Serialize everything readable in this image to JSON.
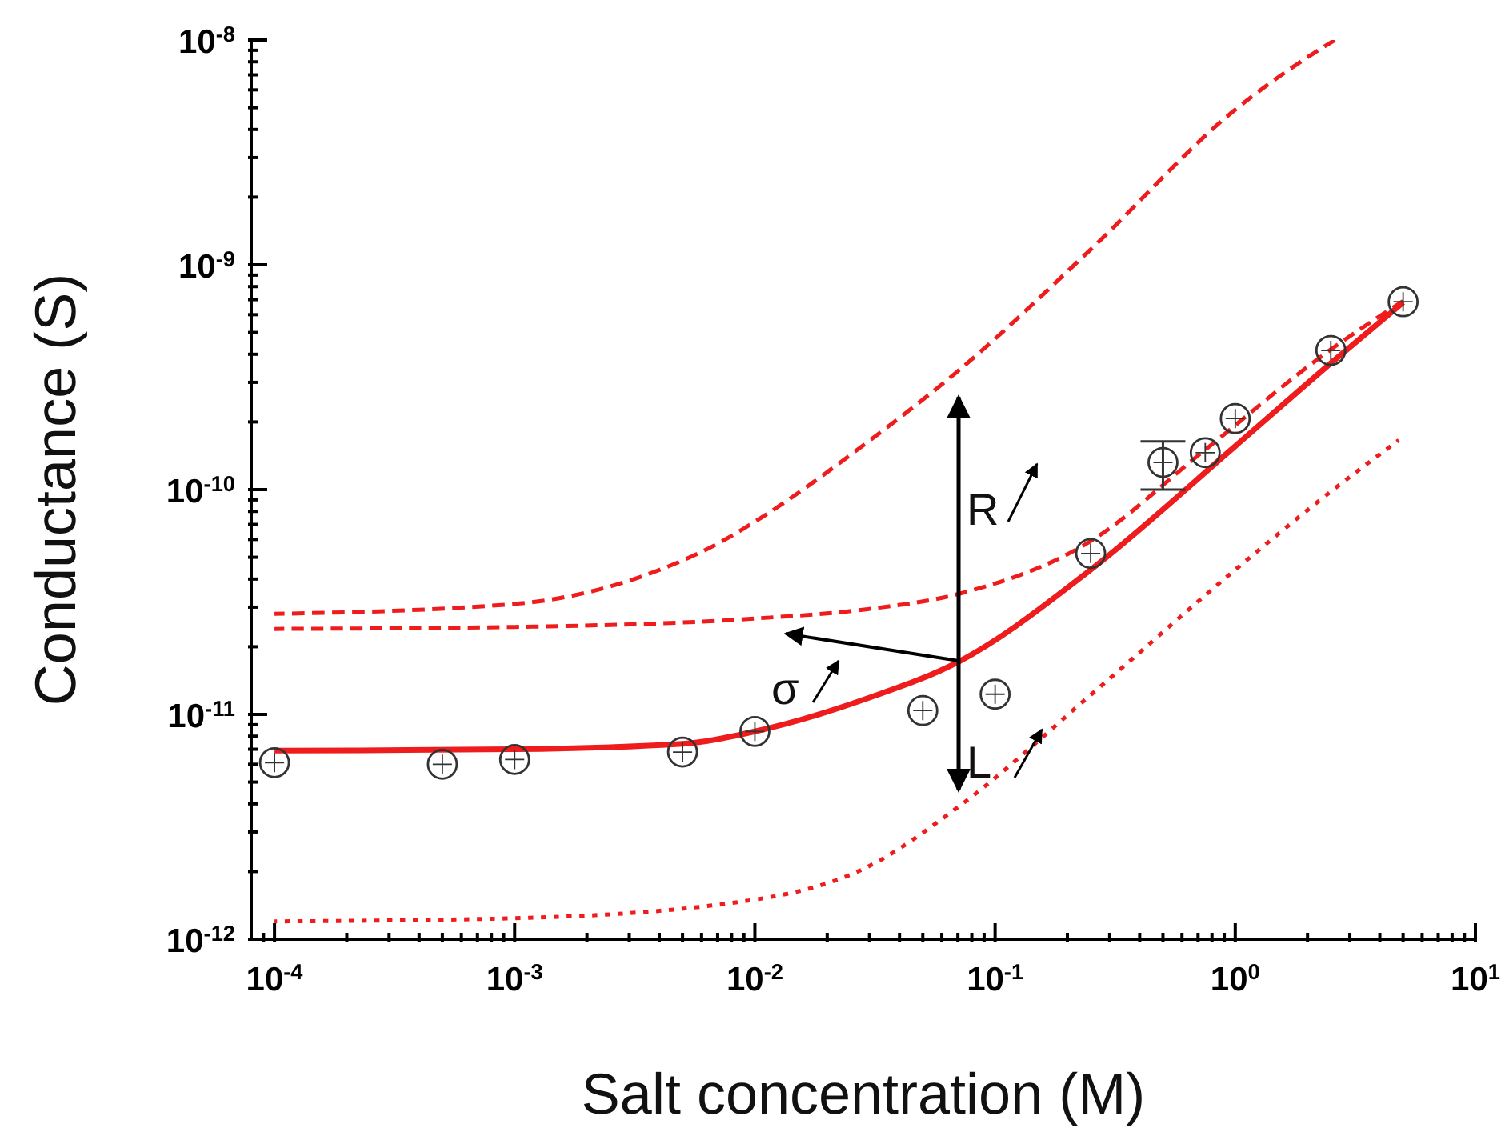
{
  "chart_data": {
    "type": "scatter",
    "xlabel": "Salt concentration (M)",
    "ylabel": "Conductance (S)",
    "log": "xy",
    "xlim": [
      8e-05,
      10
    ],
    "ylim": [
      1e-12,
      1e-08
    ],
    "xticks": [
      {
        "value": 9e-05,
        "label": null
      },
      {
        "value": 0.0001,
        "label": "10$^{-4}$"
      },
      {
        "value": 0.0002,
        "label": null
      },
      {
        "value": 0.0003,
        "label": null
      },
      {
        "value": 0.0004,
        "label": null
      },
      {
        "value": 0.0005,
        "label": null
      },
      {
        "value": 0.0006,
        "label": null
      },
      {
        "value": 0.0007,
        "label": null
      },
      {
        "value": 0.0008,
        "label": null
      },
      {
        "value": 0.0009,
        "label": null
      },
      {
        "value": 0.001,
        "label": "10$^{-3}$"
      },
      {
        "value": 0.002,
        "label": null
      },
      {
        "value": 0.003,
        "label": null
      },
      {
        "value": 0.004,
        "label": null
      },
      {
        "value": 0.005,
        "label": null
      },
      {
        "value": 0.006,
        "label": null
      },
      {
        "value": 0.007,
        "label": null
      },
      {
        "value": 0.008,
        "label": null
      },
      {
        "value": 0.009,
        "label": null
      },
      {
        "value": 0.01,
        "label": "10$^{-2}$"
      },
      {
        "value": 0.02,
        "label": null
      },
      {
        "value": 0.03,
        "label": null
      },
      {
        "value": 0.04,
        "label": null
      },
      {
        "value": 0.05,
        "label": null
      },
      {
        "value": 0.06,
        "label": null
      },
      {
        "value": 0.07,
        "label": null
      },
      {
        "value": 0.08,
        "label": null
      },
      {
        "value": 0.09,
        "label": null
      },
      {
        "value": 0.1,
        "label": "10$^{-1}$"
      },
      {
        "value": 0.2,
        "label": null
      },
      {
        "value": 0.3,
        "label": null
      },
      {
        "value": 0.4,
        "label": null
      },
      {
        "value": 0.5,
        "label": null
      },
      {
        "value": 0.6,
        "label": null
      },
      {
        "value": 0.7,
        "label": null
      },
      {
        "value": 0.8,
        "label": null
      },
      {
        "value": 0.9,
        "label": null
      },
      {
        "value": 1,
        "label": "10$^{0}$"
      },
      {
        "value": 2,
        "label": null
      },
      {
        "value": 3,
        "label": null
      },
      {
        "value": 4,
        "label": null
      },
      {
        "value": 5,
        "label": null
      },
      {
        "value": 6,
        "label": null
      },
      {
        "value": 7,
        "label": null
      },
      {
        "value": 8,
        "label": null
      },
      {
        "value": 9,
        "label": null
      },
      {
        "value": 10,
        "label": "10$^{1}$"
      }
    ],
    "yticks": [
      {
        "value": 1e-12,
        "label": "10$^{-12}$"
      },
      {
        "value": 2e-12,
        "label": null
      },
      {
        "value": 3e-12,
        "label": null
      },
      {
        "value": 4e-12,
        "label": null
      },
      {
        "value": 5e-12,
        "label": null
      },
      {
        "value": 6e-12,
        "label": null
      },
      {
        "value": 7e-12,
        "label": null
      },
      {
        "value": 8e-12,
        "label": null
      },
      {
        "value": 9e-12,
        "label": null
      },
      {
        "value": 1e-11,
        "label": "10$^{-11}$"
      },
      {
        "value": 2e-11,
        "label": null
      },
      {
        "value": 3e-11,
        "label": null
      },
      {
        "value": 4e-11,
        "label": null
      },
      {
        "value": 5e-11,
        "label": null
      },
      {
        "value": 6e-11,
        "label": null
      },
      {
        "value": 7e-11,
        "label": null
      },
      {
        "value": 8e-11,
        "label": null
      },
      {
        "value": 9e-11,
        "label": null
      },
      {
        "value": 1e-10,
        "label": "10$^{-10}$"
      },
      {
        "value": 2e-10,
        "label": null
      },
      {
        "value": 3e-10,
        "label": null
      },
      {
        "value": 4e-10,
        "label": null
      },
      {
        "value": 5e-10,
        "label": null
      },
      {
        "value": 6e-10,
        "label": null
      },
      {
        "value": 7e-10,
        "label": null
      },
      {
        "value": 8e-10,
        "label": null
      },
      {
        "value": 9e-10,
        "label": null
      },
      {
        "value": 1e-09,
        "label": "10$^{-9}$"
      },
      {
        "value": 2e-09,
        "label": null
      },
      {
        "value": 3e-09,
        "label": null
      },
      {
        "value": 4e-09,
        "label": null
      },
      {
        "value": 5e-09,
        "label": null
      },
      {
        "value": 6e-09,
        "label": null
      },
      {
        "value": 7e-09,
        "label": null
      },
      {
        "value": 8e-09,
        "label": null
      },
      {
        "value": 9e-09,
        "label": null
      },
      {
        "value": 1e-08,
        "label": "10$^{-8}$"
      }
    ],
    "annotations": [
      "R",
      "σ",
      "L"
    ],
    "series": [
      {
        "type": "line",
        "color": "#ee1c1c",
        "line_style": "dashed",
        "marker": "none",
        "x": [
          0.0001,
          0.001,
          0.0038,
          0.0069,
          0.01,
          0.0295,
          0.0708,
          0.25,
          1,
          2.04,
          2.6
        ],
        "values": [
          2.8e-11,
          3.1e-11,
          4.3e-11,
          5.7e-11,
          7.2e-11,
          1.63e-10,
          3.4e-10,
          1.17e-09,
          4.9e-09,
          8.5e-09,
          1e-08
        ]
      },
      {
        "type": "line",
        "color": "#ee1c1c",
        "line_style": "dashed",
        "marker": "none",
        "x": [
          0.0001,
          0.001,
          0.01,
          0.0295,
          0.0708,
          0.25,
          0.73,
          2.5,
          5
        ],
        "values": [
          2.4e-11,
          2.45e-11,
          2.67e-11,
          2.94e-11,
          3.44e-11,
          5.9e-11,
          1.47e-10,
          4.2e-10,
          6.9e-10
        ]
      },
      {
        "type": "line",
        "color": "#ee1c1c",
        "line_style": "dotted",
        "marker": "none",
        "x": [
          0.0001,
          0.001,
          0.01,
          0.0295,
          0.0708,
          0.25,
          1,
          2.5,
          4.8
        ],
        "values": [
          1.2e-12,
          1.24e-12,
          1.5e-12,
          2.1e-12,
          3.9e-12,
          1.22e-11,
          4.4e-11,
          9.8e-11,
          1.66e-10
        ]
      },
      {
        "type": "line",
        "color": "#ee1c1c",
        "line_style": "solid",
        "marker": "none",
        "x": [
          0.0001,
          0.001,
          0.005,
          0.01,
          0.0295,
          0.0708,
          0.25,
          1,
          2.5,
          5
        ],
        "values": [
          6.9e-12,
          7e-12,
          7.4e-12,
          8.4e-12,
          1.18e-11,
          1.72e-11,
          4.4e-11,
          1.56e-10,
          3.65e-10,
          6.8e-10
        ]
      },
      {
        "color": "#333333",
        "marker": "circle",
        "x": [
          0.0001,
          0.0005,
          0.001,
          0.005,
          0.01,
          0.05,
          0.1,
          0.25,
          0.5,
          0.75,
          1,
          2.5,
          5
        ],
        "values": [
          6.1e-12,
          6e-12,
          6.3e-12,
          6.8e-12,
          8.4e-12,
          1.04e-11,
          1.23e-11,
          5.2e-11,
          1.32e-10,
          1.46e-10,
          2.07e-10,
          4.16e-10,
          6.85e-10
        ],
        "errors": [
          null,
          null,
          null,
          null,
          null,
          null,
          null,
          null,
          3.2e-11,
          null,
          null,
          null,
          null
        ]
      }
    ]
  }
}
